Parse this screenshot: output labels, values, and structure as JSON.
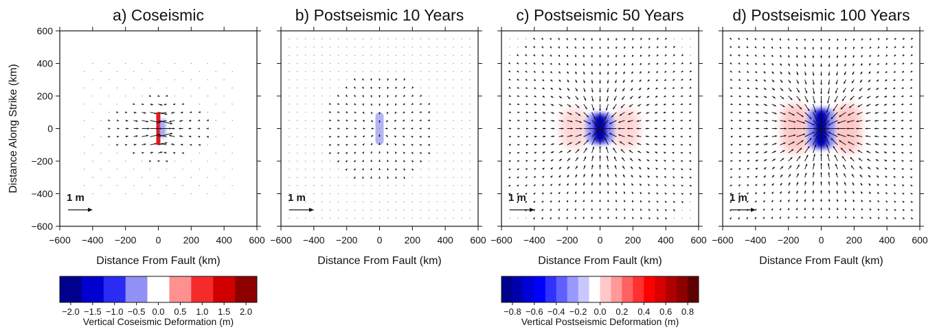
{
  "chart_data": [
    {
      "type": "vector-field",
      "title": "a) Coseismic",
      "xlabel": "Distance From Fault (km)",
      "ylabel": "Distance Along Strike (km)",
      "xlim": [
        -600,
        600
      ],
      "ylim": [
        -600,
        600
      ],
      "xticks": [
        "-600",
        "-400",
        "-200",
        "0",
        "200",
        "400",
        "600"
      ],
      "yticks": [
        "600",
        "400",
        "200",
        "0",
        "-200",
        "-400",
        "-600"
      ],
      "scale_label": "1 m",
      "field": "coseismic"
    },
    {
      "type": "vector-field",
      "title": "b) Postseismic 10 Years",
      "xlabel": "Distance From Fault (km)",
      "xlim": [
        -600,
        600
      ],
      "ylim": [
        -600,
        600
      ],
      "xticks": [
        "-600",
        "-400",
        "-200",
        "0",
        "200",
        "400",
        "600"
      ],
      "scale_label": "1 m",
      "field": "post10"
    },
    {
      "type": "vector-field",
      "title": "c) Postseismic 50 Years",
      "xlabel": "Distance From Fault (km)",
      "xlim": [
        -600,
        600
      ],
      "ylim": [
        -600,
        600
      ],
      "xticks": [
        "-600",
        "-400",
        "-200",
        "0",
        "200",
        "400",
        "600"
      ],
      "scale_label": "1 m",
      "field": "post50"
    },
    {
      "type": "vector-field",
      "title": "d) Postseismic 100 Years",
      "xlabel": "Distance From Fault (km)",
      "xlim": [
        -600,
        600
      ],
      "ylim": [
        -600,
        600
      ],
      "xticks": [
        "-600",
        "-400",
        "-200",
        "0",
        "200",
        "400",
        "600"
      ],
      "scale_label": "1 m",
      "field": "post100"
    }
  ],
  "colorbars": [
    {
      "label": "Vertical Coseismic Deformation (m)",
      "ticks": [
        "-2.0",
        "-1.5",
        "-1.0",
        "-0.5",
        "0.0",
        "0.5",
        "1.0",
        "1.5",
        "2.0"
      ],
      "colors": [
        "#00008c",
        "#0000d0",
        "#2b2bf5",
        "#9090f5",
        "#ffffff",
        "#ff9090",
        "#f52b2b",
        "#d00000",
        "#8c0000"
      ]
    },
    {
      "label": "Vertical Postseismic Deformation (m)",
      "ticks": [
        "-0.8",
        "-0.6",
        "-0.4",
        "-0.2",
        "0.0",
        "0.2",
        "0.4",
        "0.6",
        "0.8"
      ],
      "colors": [
        "#00008c",
        "#0000b0",
        "#0000d8",
        "#0000ff",
        "#3030ff",
        "#6060ff",
        "#9898ff",
        "#c8c8ff",
        "#ffffff",
        "#ffc8c8",
        "#ff9898",
        "#ff6060",
        "#ff3030",
        "#ff0000",
        "#d80000",
        "#b00000",
        "#8c0000",
        "#600000"
      ]
    }
  ]
}
